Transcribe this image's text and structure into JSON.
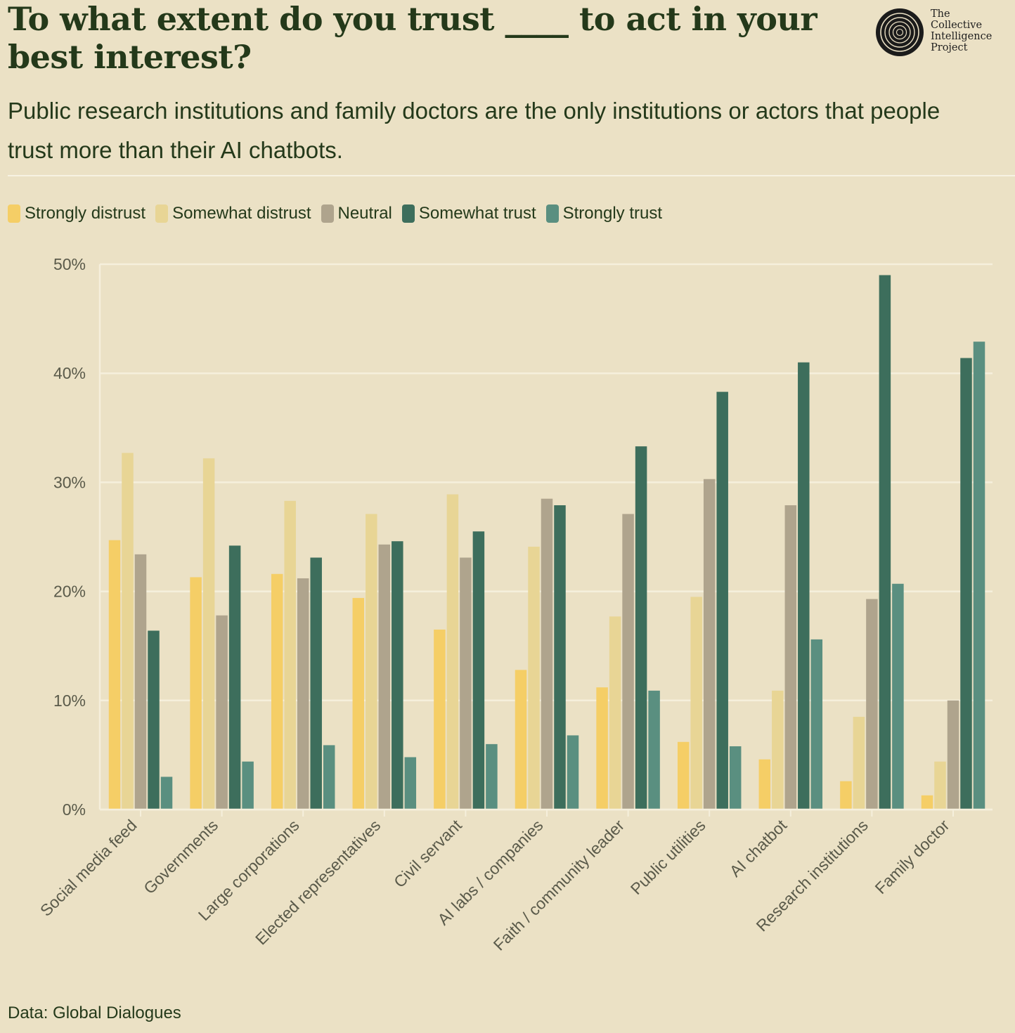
{
  "header": {
    "title": "To what extent do you trust ____ to act in your best interest?",
    "subtitle": "Public research institutions and family doctors are the only institutions or actors that people trust more than their AI chatbots."
  },
  "logo": {
    "icon": "concentric-rings-icon",
    "lines": [
      "The",
      "Collective",
      "Intelligence",
      "Project"
    ]
  },
  "footer": {
    "source": "Data: Global Dialogues"
  },
  "chart_data": {
    "type": "bar",
    "title": "To what extent do you trust ____ to act in your best interest?",
    "xlabel": "",
    "ylabel": "",
    "ylim": [
      0,
      50
    ],
    "yticks": [
      0,
      10,
      20,
      30,
      40,
      50
    ],
    "ytick_labels": [
      "0%",
      "10%",
      "20%",
      "30%",
      "40%",
      "50%"
    ],
    "grid": true,
    "legend_position": "top-left",
    "categories": [
      "Social media feed",
      "Governments",
      "Large corporations",
      "Elected representatives",
      "Civil servant",
      "AI labs / companies",
      "Faith / community leader",
      "Public utilities",
      "AI chatbot",
      "Research institutions",
      "Family doctor"
    ],
    "series": [
      {
        "name": "Strongly distrust",
        "color": "#f5ce66",
        "values": [
          24.7,
          21.3,
          21.6,
          19.4,
          16.5,
          12.8,
          11.2,
          6.2,
          4.6,
          2.6,
          1.3
        ]
      },
      {
        "name": "Somewhat distrust",
        "color": "#e8d595",
        "values": [
          32.7,
          32.2,
          28.3,
          27.1,
          28.9,
          24.1,
          17.7,
          19.5,
          10.9,
          8.5,
          4.4
        ]
      },
      {
        "name": "Neutral",
        "color": "#afa48d",
        "values": [
          23.4,
          17.8,
          21.2,
          24.3,
          23.1,
          28.5,
          27.1,
          30.3,
          27.9,
          19.3,
          10.0
        ]
      },
      {
        "name": "Somewhat trust",
        "color": "#3d6e5c",
        "values": [
          16.4,
          24.2,
          23.1,
          24.6,
          25.5,
          27.9,
          33.3,
          38.3,
          41.0,
          49.0,
          41.4
        ]
      },
      {
        "name": "Strongly trust",
        "color": "#5a8f80",
        "values": [
          3.0,
          4.4,
          5.9,
          4.8,
          6.0,
          6.8,
          10.9,
          5.8,
          15.6,
          20.7,
          42.9
        ]
      }
    ]
  }
}
